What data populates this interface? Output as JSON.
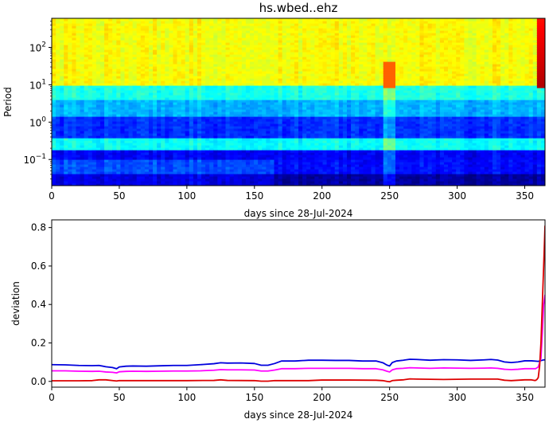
{
  "chart_data": [
    {
      "type": "heatmap",
      "title": "hs.wbed..ehz",
      "xlabel": "days since 28-Jul-2024",
      "ylabel": "Period",
      "xlim": [
        0,
        365
      ],
      "ylim": [
        0.02,
        600
      ],
      "yscale": "log",
      "xticks": [
        0,
        50,
        100,
        150,
        200,
        250,
        300,
        350
      ],
      "yticks": [
        {
          "value": 0.1,
          "base": "10",
          "exp": "−1"
        },
        {
          "value": 1,
          "base": "10",
          "exp": "0"
        },
        {
          "value": 10,
          "base": "10",
          "exp": "1"
        },
        {
          "value": 100,
          "base": "10",
          "exp": "2"
        }
      ],
      "colormap": "jet",
      "bands": [
        {
          "period_range": [
            10,
            600
          ],
          "level": 0.62
        },
        {
          "period_range": [
            4,
            10
          ],
          "level": 0.4
        },
        {
          "period_range": [
            1.5,
            4
          ],
          "level": 0.3
        },
        {
          "period_range": [
            0.4,
            1.5
          ],
          "level": 0.17
        },
        {
          "period_range": [
            0.17,
            0.4
          ],
          "level": 0.38
        },
        {
          "period_range": [
            0.1,
            0.17
          ],
          "level": 0.12
        },
        {
          "period_range": [
            0.04,
            0.1
          ],
          "level": 0.2
        },
        {
          "period_range": [
            0.02,
            0.04
          ],
          "level": 0.1
        }
      ],
      "features": [
        {
          "days": [
            248,
            252
          ],
          "note_level": 0.78
        },
        {
          "days": [
            362,
            365
          ],
          "note_level": 0.95
        }
      ]
    },
    {
      "type": "line",
      "xlabel": "days since 28-Jul-2024",
      "ylabel": "deviation",
      "xlim": [
        0,
        365
      ],
      "ylim": [
        -0.03,
        0.84
      ],
      "xticks": [
        0,
        50,
        100,
        150,
        200,
        250,
        300,
        350
      ],
      "yticks": [
        "0.0",
        "0.2",
        "0.4",
        "0.6",
        "0.8"
      ],
      "series": [
        {
          "color": "#0000dd",
          "x": [
            0,
            10,
            20,
            30,
            35,
            40,
            45,
            48,
            50,
            55,
            60,
            70,
            80,
            90,
            100,
            110,
            120,
            125,
            130,
            140,
            150,
            155,
            160,
            165,
            170,
            180,
            190,
            200,
            210,
            220,
            230,
            240,
            245,
            248,
            250,
            252,
            255,
            260,
            265,
            270,
            280,
            290,
            300,
            310,
            320,
            325,
            330,
            335,
            340,
            345,
            350,
            355,
            360,
            362,
            364,
            365
          ],
          "y": [
            0.087,
            0.086,
            0.083,
            0.082,
            0.083,
            0.076,
            0.072,
            0.066,
            0.075,
            0.079,
            0.08,
            0.079,
            0.081,
            0.083,
            0.083,
            0.087,
            0.092,
            0.097,
            0.095,
            0.096,
            0.093,
            0.084,
            0.084,
            0.093,
            0.106,
            0.106,
            0.11,
            0.11,
            0.109,
            0.109,
            0.106,
            0.106,
            0.097,
            0.085,
            0.08,
            0.098,
            0.106,
            0.11,
            0.115,
            0.114,
            0.11,
            0.113,
            0.112,
            0.109,
            0.112,
            0.114,
            0.111,
            0.101,
            0.098,
            0.101,
            0.107,
            0.107,
            0.104,
            0.108,
            0.112,
            0.112
          ]
        },
        {
          "color": "#ff00ff",
          "x": [
            0,
            10,
            20,
            30,
            35,
            40,
            45,
            48,
            50,
            55,
            60,
            70,
            80,
            90,
            100,
            110,
            120,
            125,
            130,
            140,
            150,
            155,
            160,
            165,
            170,
            180,
            190,
            200,
            210,
            220,
            230,
            240,
            245,
            248,
            250,
            252,
            255,
            260,
            265,
            270,
            280,
            290,
            300,
            310,
            320,
            325,
            330,
            335,
            340,
            345,
            350,
            355,
            358,
            360,
            362,
            363,
            364,
            365
          ],
          "y": [
            0.055,
            0.055,
            0.053,
            0.052,
            0.053,
            0.049,
            0.047,
            0.044,
            0.05,
            0.052,
            0.053,
            0.052,
            0.053,
            0.054,
            0.054,
            0.055,
            0.058,
            0.061,
            0.06,
            0.06,
            0.059,
            0.054,
            0.054,
            0.059,
            0.066,
            0.066,
            0.068,
            0.068,
            0.068,
            0.068,
            0.066,
            0.066,
            0.06,
            0.053,
            0.049,
            0.06,
            0.066,
            0.068,
            0.071,
            0.07,
            0.068,
            0.07,
            0.069,
            0.068,
            0.069,
            0.07,
            0.068,
            0.063,
            0.061,
            0.063,
            0.066,
            0.066,
            0.066,
            0.075,
            0.12,
            0.25,
            0.4,
            0.45
          ]
        },
        {
          "color": "#dd0000",
          "x": [
            0,
            10,
            20,
            30,
            35,
            40,
            45,
            48,
            50,
            60,
            80,
            100,
            120,
            125,
            130,
            150,
            155,
            160,
            165,
            170,
            190,
            200,
            220,
            240,
            245,
            248,
            250,
            252,
            255,
            260,
            265,
            270,
            290,
            310,
            330,
            335,
            340,
            350,
            355,
            357,
            358,
            359,
            360,
            361,
            362,
            363,
            364,
            365
          ],
          "y": [
            0.003,
            0.003,
            0.003,
            0.004,
            0.008,
            0.008,
            0.004,
            0.002,
            0.004,
            0.004,
            0.004,
            0.004,
            0.005,
            0.008,
            0.005,
            0.004,
            0.001,
            0.001,
            0.004,
            0.004,
            0.004,
            0.007,
            0.007,
            0.006,
            0.004,
            0.0,
            -0.002,
            0.004,
            0.006,
            0.008,
            0.013,
            0.012,
            0.01,
            0.012,
            0.012,
            0.006,
            0.004,
            0.008,
            0.008,
            0.005,
            0.005,
            0.01,
            0.02,
            0.08,
            0.2,
            0.4,
            0.6,
            0.81
          ]
        }
      ]
    }
  ]
}
